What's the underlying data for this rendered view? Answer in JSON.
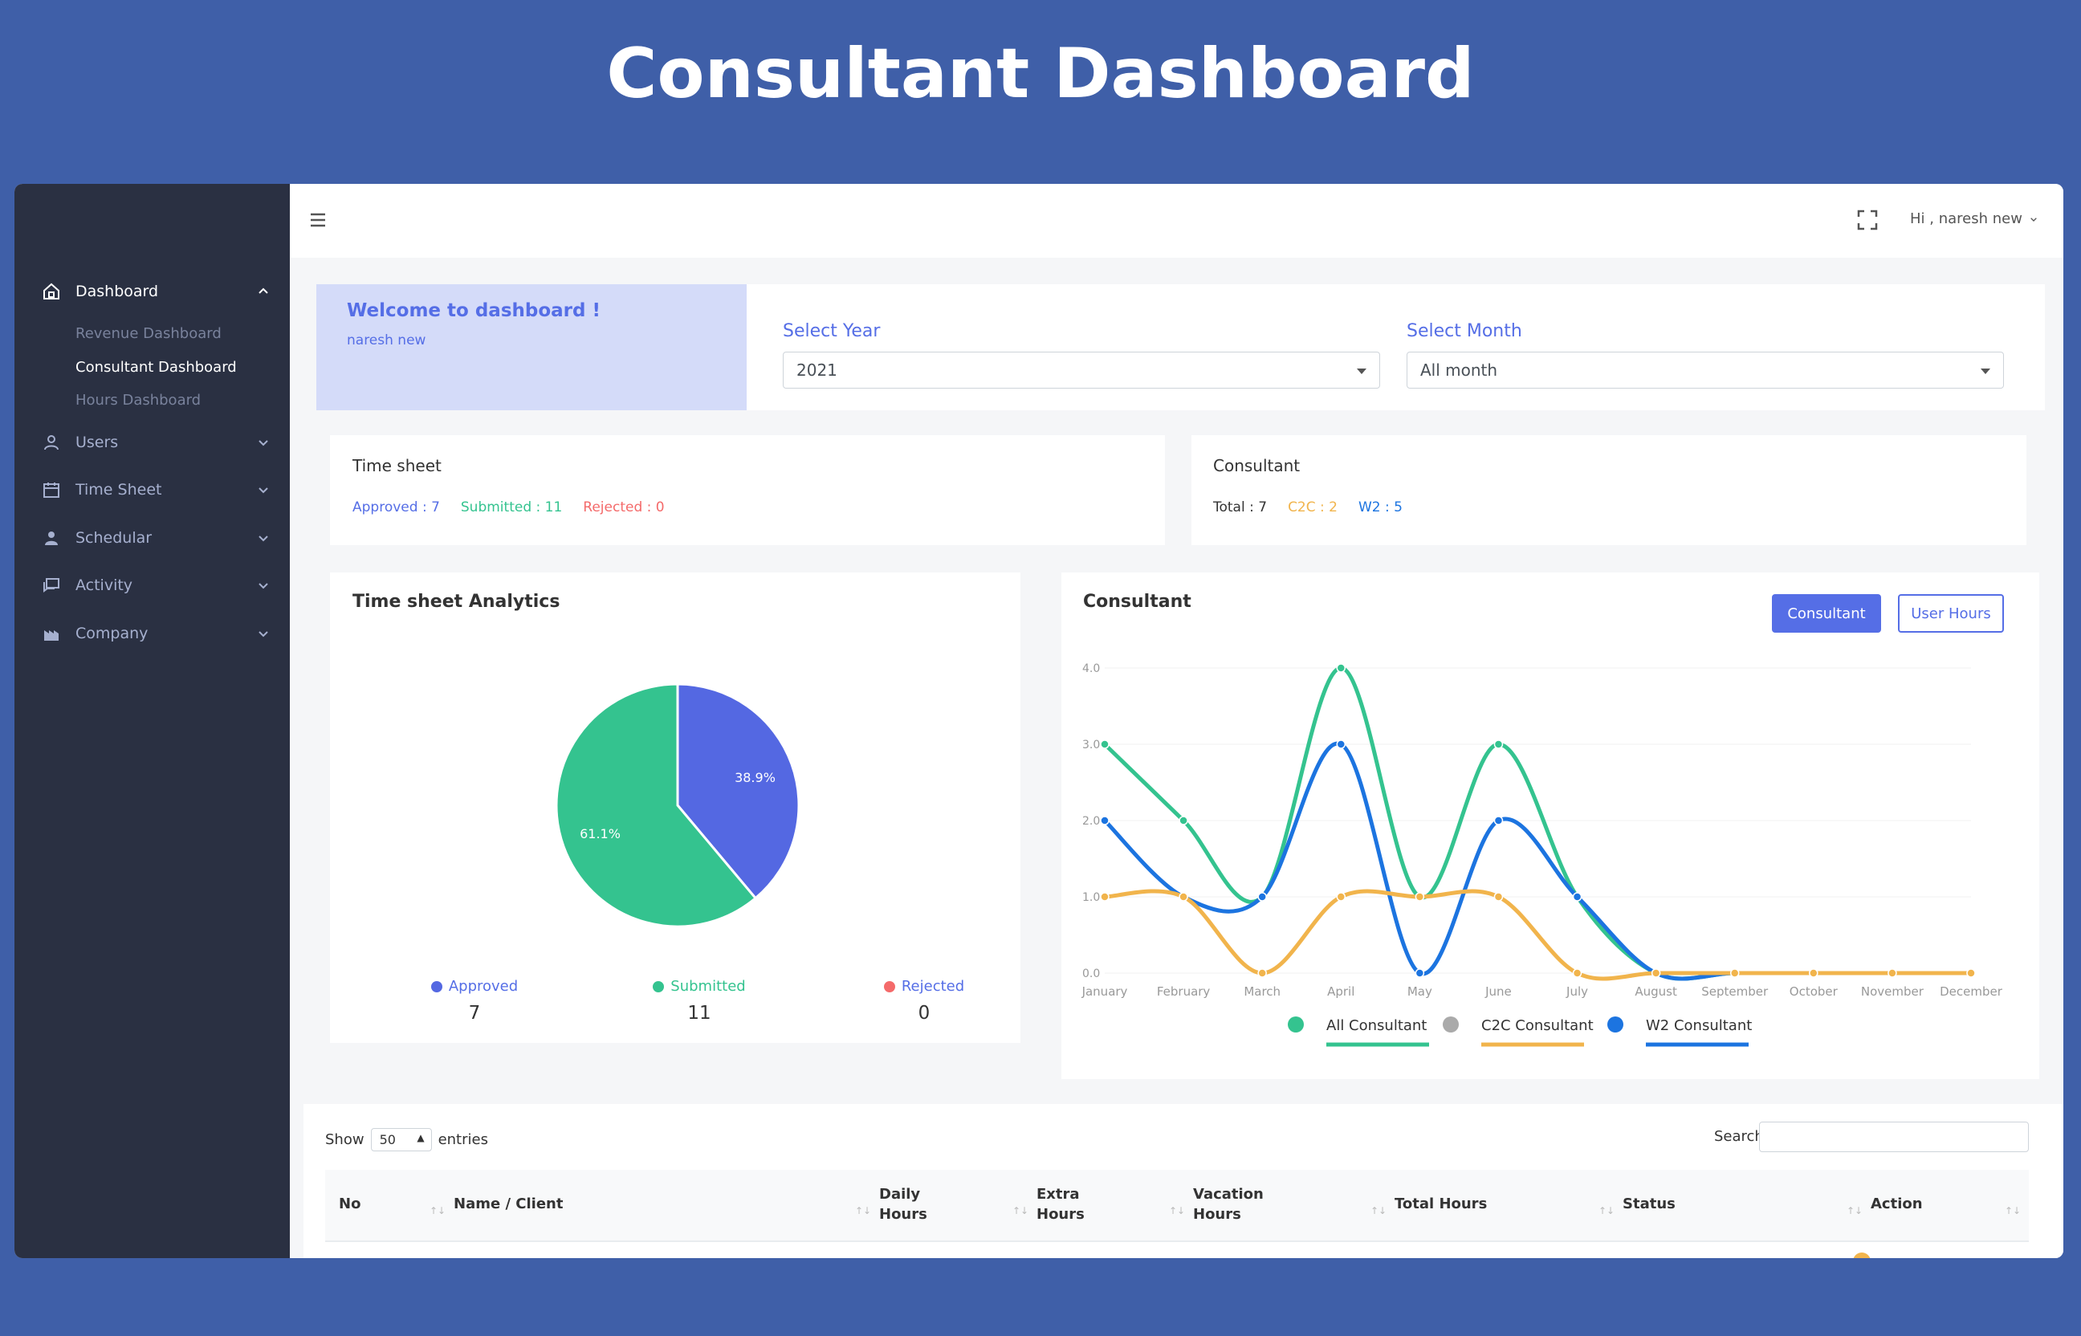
{
  "banner": {
    "title": "Consultant Dashboard"
  },
  "sidebar": {
    "items": [
      {
        "label": "Dashboard",
        "icon": "home-icon"
      },
      {
        "label": "Users",
        "icon": "user-icon"
      },
      {
        "label": "Time Sheet",
        "icon": "calendar-icon"
      },
      {
        "label": "Schedular",
        "icon": "person-icon"
      },
      {
        "label": "Activity",
        "icon": "chat-icon"
      },
      {
        "label": "Company",
        "icon": "factory-icon"
      }
    ],
    "dashboard_sub": [
      {
        "label": "Revenue Dashboard"
      },
      {
        "label": "Consultant Dashboard"
      },
      {
        "label": "Hours Dashboard"
      }
    ]
  },
  "topbar": {
    "user_greeting": "Hi , naresh new"
  },
  "welcome": {
    "title": "Welcome to dashboard !",
    "user": "naresh new"
  },
  "filters": {
    "year_label": "Select Year",
    "year_value": "2021",
    "month_label": "Select Month",
    "month_value": "All month"
  },
  "timesheet_summary": {
    "title": "Time sheet",
    "approved": "Approved : 7",
    "submitted": "Submitted : 11",
    "rejected": "Rejected : 0"
  },
  "consultant_summary": {
    "title": "Consultant",
    "total": "Total : 7",
    "c2c": "C2C : 2",
    "w2": "W2 : 5"
  },
  "pie_card": {
    "title": "Time sheet Analytics"
  },
  "line_card": {
    "title": "Consultant",
    "btn_consultant": "Consultant",
    "btn_user_hours": "User Hours"
  },
  "colors": {
    "approved": "#5468e2",
    "submitted": "#34c38f",
    "rejected": "#f46a6a",
    "c2c": "#f1b44c",
    "w2": "#1c74e0",
    "accent": "#556ee6"
  },
  "chart_data": [
    {
      "type": "pie",
      "title": "Time sheet Analytics",
      "categories": [
        "Approved",
        "Submitted",
        "Rejected"
      ],
      "values": [
        7,
        11,
        0
      ],
      "value_labels": [
        "38.9%",
        "61.1%",
        ""
      ],
      "counts": [
        "7",
        "11",
        "0"
      ]
    },
    {
      "type": "line",
      "title": "Consultant",
      "categories": [
        "January",
        "February",
        "March",
        "April",
        "May",
        "June",
        "July",
        "August",
        "September",
        "October",
        "November",
        "December"
      ],
      "ylim": [
        0,
        4
      ],
      "yticks": [
        "0.0",
        "1.0",
        "2.0",
        "3.0",
        "4.0"
      ],
      "series": [
        {
          "name": "All Consultant",
          "values": [
            3,
            2,
            1,
            4,
            1,
            3,
            1,
            0,
            0,
            0,
            0,
            0
          ]
        },
        {
          "name": "C2C Consultant",
          "values": [
            1,
            1,
            0,
            1,
            1,
            1,
            0,
            0,
            0,
            0,
            0,
            0
          ]
        },
        {
          "name": "W2 Consultant",
          "values": [
            2,
            1,
            1,
            3,
            0,
            2,
            1,
            0,
            0,
            0,
            0,
            0
          ]
        }
      ]
    }
  ],
  "table": {
    "show_label": "Show",
    "entries_value": "50",
    "entries_label": "entries",
    "search_label": "Search:",
    "columns": [
      "No",
      "Name / Client",
      "Daily\nHours",
      "Extra\nHours",
      "Vacation\nHours",
      "Total Hours",
      "Status",
      "Action"
    ]
  }
}
